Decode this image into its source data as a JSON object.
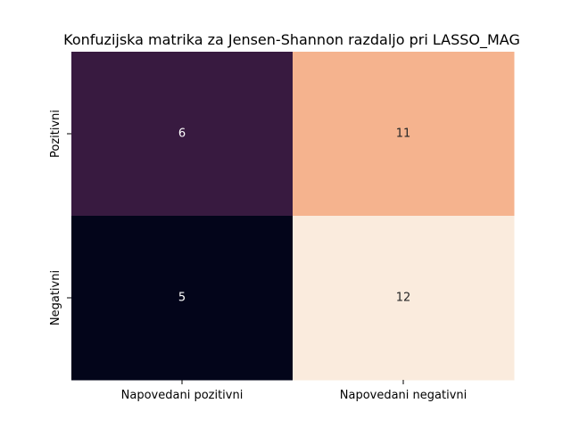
{
  "chart_data": {
    "type": "heatmap",
    "title": "Konfuzijska matrika za Jensen-Shannon razdaljo pri LASSO_MAG",
    "xlabel": "",
    "ylabel": "",
    "x_categories": [
      "Napovedani pozitivni",
      "Napovedani negativni"
    ],
    "y_categories": [
      "Pozitivni",
      "Negativni"
    ],
    "values": [
      [
        6,
        11
      ],
      [
        5,
        12
      ]
    ],
    "value_range": [
      5,
      12
    ],
    "colors": [
      [
        "#381a40",
        "#f5b38e"
      ],
      [
        "#03051a",
        "#faebdd"
      ]
    ],
    "annotation_colors": [
      [
        "#ffffff",
        "#262626"
      ],
      [
        "#ffffff",
        "#262626"
      ]
    ],
    "colorbar": false,
    "grid": false
  }
}
